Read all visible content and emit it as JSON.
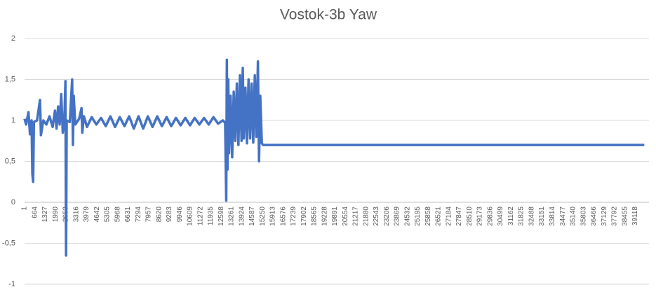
{
  "chart_data": {
    "type": "line",
    "title": "Vostok-3b Yaw",
    "color": "#4472c4",
    "grid": true,
    "x": [
      1,
      100,
      250,
      350,
      450,
      500,
      550,
      600,
      800,
      990,
      1050,
      1200,
      1400,
      1600,
      1800,
      1950,
      2050,
      2150,
      2250,
      2350,
      2450,
      2550,
      2620,
      2660,
      2700,
      2900,
      3050,
      3100,
      3150,
      3250,
      3500,
      3650,
      3700,
      3800,
      4000,
      4300,
      4600,
      4900,
      5200,
      5500,
      5800,
      6100,
      6400,
      6700,
      7000,
      7300,
      7600,
      7900,
      8200,
      8500,
      8800,
      9100,
      9400,
      9700,
      10000,
      10300,
      10600,
      10900,
      11200,
      11500,
      11800,
      12100,
      12400,
      12700,
      12850,
      12920,
      12960,
      13000,
      13050,
      13100,
      13200,
      13300,
      13400,
      13500,
      13600,
      13700,
      13800,
      13900,
      13980,
      14050,
      14150,
      14250,
      14350,
      14450,
      14550,
      14650,
      14750,
      14850,
      14950,
      15020,
      15100,
      15200,
      15280,
      20000,
      30000,
      39700
    ],
    "values": [
      1.02,
      0.95,
      1.1,
      0.83,
      1.0,
      0.35,
      0.25,
      0.98,
      1.0,
      1.25,
      0.82,
      1.0,
      0.95,
      1.05,
      0.92,
      1.12,
      0.9,
      1.17,
      0.95,
      1.32,
      0.85,
      1.0,
      1.48,
      -0.65,
      1.0,
      0.98,
      1.5,
      0.7,
      1.3,
      0.95,
      1.02,
      1.15,
      0.85,
      1.05,
      0.92,
      1.04,
      0.95,
      1.03,
      0.93,
      1.05,
      0.92,
      1.04,
      0.93,
      1.05,
      0.9,
      1.05,
      0.9,
      1.05,
      0.92,
      1.05,
      0.93,
      1.04,
      0.93,
      1.03,
      0.94,
      1.03,
      0.94,
      1.03,
      0.95,
      1.03,
      0.95,
      1.04,
      0.96,
      1.0,
      0.97,
      0.02,
      1.74,
      0.4,
      1.5,
      0.6,
      1.3,
      0.55,
      1.35,
      0.75,
      1.45,
      0.7,
      1.55,
      0.75,
      1.64,
      0.78,
      1.4,
      0.72,
      1.5,
      0.78,
      1.45,
      0.73,
      1.55,
      0.8,
      1.72,
      0.5,
      1.3,
      0.72,
      0.7,
      0.7,
      0.7,
      0.7
    ],
    "xlim": [
      1,
      40000
    ],
    "xticks": [
      1,
      664,
      1327,
      1990,
      2653,
      3316,
      3979,
      4642,
      5305,
      5968,
      6631,
      7294,
      7957,
      8620,
      9283,
      9946,
      10609,
      11272,
      11935,
      12598,
      13261,
      13924,
      14587,
      15250,
      15913,
      16576,
      17239,
      17902,
      18565,
      19228,
      19891,
      20554,
      21217,
      21880,
      22543,
      23206,
      23869,
      24532,
      25195,
      25858,
      26521,
      27184,
      27847,
      28510,
      29173,
      29836,
      30499,
      31162,
      31825,
      32488,
      33151,
      33814,
      34477,
      35140,
      35803,
      36466,
      37129,
      37792,
      38455,
      39118
    ],
    "ylim": [
      -1,
      2
    ],
    "yticks": [
      -1,
      {
        "value": -0.5,
        "label": "-0,5"
      },
      0,
      {
        "value": 0.5,
        "label": "0,5"
      },
      1,
      {
        "value": 1.5,
        "label": "1,5"
      },
      2
    ]
  }
}
